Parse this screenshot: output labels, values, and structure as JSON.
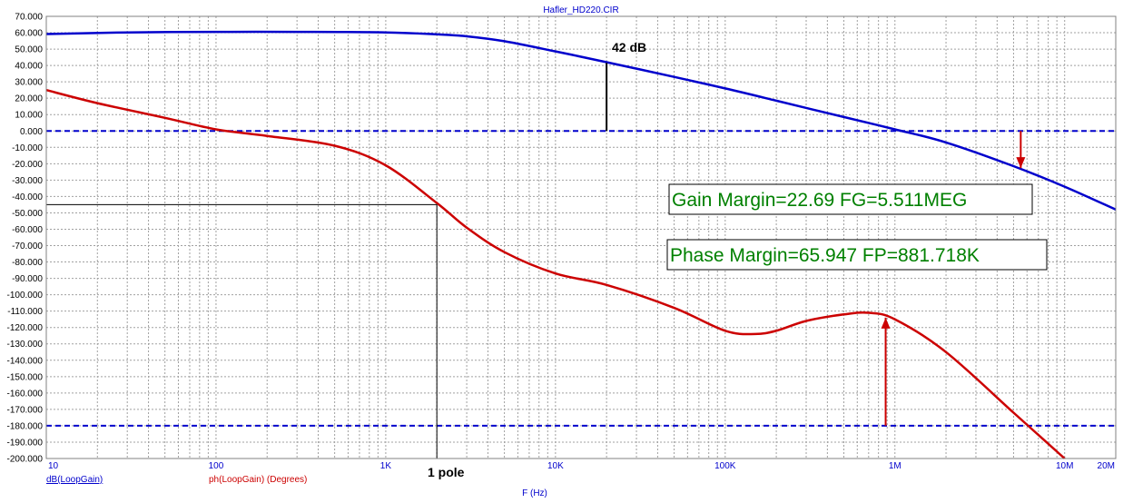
{
  "chart_data": {
    "type": "line",
    "title": "Hafler_HD220.CIR",
    "xlabel": "F (Hz)",
    "x_scale": "log",
    "xlim": [
      10,
      20000000
    ],
    "ylim": [
      -200,
      70
    ],
    "grid": true,
    "x_ticks": [
      {
        "value": 10,
        "label": "10"
      },
      {
        "value": 100,
        "label": "100"
      },
      {
        "value": 1000,
        "label": "1K"
      },
      {
        "value": 10000,
        "label": "10K"
      },
      {
        "value": 100000,
        "label": "100K"
      },
      {
        "value": 1000000,
        "label": "1M"
      },
      {
        "value": 10000000,
        "label": "10M"
      },
      {
        "value": 20000000,
        "label": "20M"
      }
    ],
    "y_ticks": [
      70,
      60,
      50,
      40,
      30,
      20,
      10,
      0,
      -10,
      -20,
      -30,
      -40,
      -50,
      -60,
      -70,
      -80,
      -90,
      -100,
      -110,
      -120,
      -130,
      -140,
      -150,
      -160,
      -170,
      -180,
      -190,
      -200
    ],
    "y_tick_labels": [
      "70.000",
      "60.000",
      "50.000",
      "40.000",
      "30.000",
      "20.000",
      "10.000",
      "0.000",
      "-10.000",
      "-20.000",
      "-30.000",
      "-40.000",
      "-50.000",
      "-60.000",
      "-70.000",
      "-80.000",
      "-90.000",
      "-100.000",
      "-110.000",
      "-120.000",
      "-130.000",
      "-140.000",
      "-150.000",
      "-160.000",
      "-170.000",
      "-180.000",
      "-190.000",
      "-200.000"
    ],
    "series": [
      {
        "name": "dB(LoopGain)",
        "color": "#0000cc",
        "x": [
          10,
          30,
          100,
          300,
          1000,
          2000,
          3000,
          5000,
          10000,
          20000,
          50000,
          100000,
          200000,
          500000,
          1000000,
          2000000,
          5000000,
          10000000,
          20000000
        ],
        "y": [
          59.2,
          60.2,
          60.5,
          60.5,
          60.2,
          59.0,
          57.8,
          54.8,
          48.6,
          42.0,
          33.0,
          26.0,
          18.5,
          8.5,
          1.0,
          -7.0,
          -21.5,
          -34.0,
          -48.0
        ]
      },
      {
        "name": "ph(LoopGain) (Degrees)",
        "color": "#cc0000",
        "x": [
          10,
          20,
          50,
          100,
          200,
          500,
          1000,
          2000,
          3000,
          5000,
          10000,
          20000,
          50000,
          100000,
          150000,
          200000,
          300000,
          500000,
          700000,
          1000000,
          2000000,
          5000000,
          10000000
        ],
        "y": [
          25,
          17,
          8,
          1,
          -3,
          -9,
          -21,
          -44,
          -59,
          -74,
          -87,
          -94,
          -108,
          -122,
          -124,
          -122,
          -116,
          -112,
          -111,
          -115,
          -135,
          -172,
          -200
        ]
      }
    ],
    "reference_lines": [
      {
        "y": 0,
        "color": "#0000cc",
        "style": "dashed"
      },
      {
        "y": -180,
        "color": "#0000cc",
        "style": "dashed"
      }
    ],
    "markers": [
      {
        "type": "vline",
        "x": 20000,
        "y1": 0,
        "y2": 41.6,
        "color": "#000000"
      },
      {
        "type": "hline",
        "y": -45,
        "x1": 10,
        "x2": 2000,
        "color": "#000000"
      },
      {
        "type": "vline",
        "x": 2000,
        "y1": -200,
        "y2": -45,
        "color": "#000000"
      },
      {
        "type": "arrow",
        "x": 5511000,
        "y1": 0,
        "y2": -22.69,
        "color": "#cc0000"
      },
      {
        "type": "arrow",
        "x": 881718,
        "y1": -180,
        "y2": -114,
        "color": "#cc0000"
      }
    ],
    "annotations": {
      "gain_db": "42 dB",
      "pole": "1 pole",
      "gain_margin": "Gain Margin=22.69 FG=5.511MEG",
      "phase_margin": "Phase Margin=65.947 FP=881.718K"
    }
  }
}
